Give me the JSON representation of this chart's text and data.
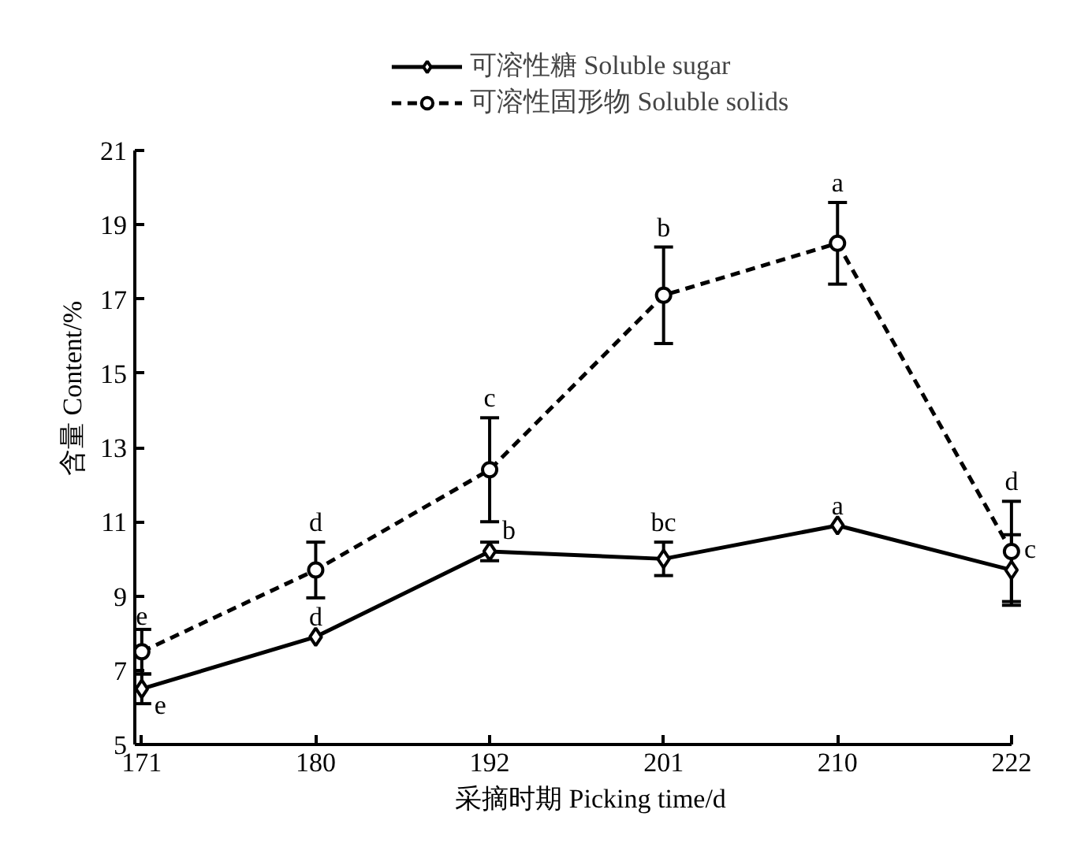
{
  "chart_data": {
    "type": "line",
    "xlabel": "采摘时期 Picking time/d",
    "ylabel": "含量 Content/%",
    "categories": [
      "171",
      "180",
      "192",
      "201",
      "210",
      "222"
    ],
    "ylim": [
      5,
      21
    ],
    "yticks": [
      5,
      7,
      9,
      11,
      13,
      15,
      17,
      19,
      21
    ],
    "grid": false,
    "legend": "top",
    "series": [
      {
        "name": "可溶性糖 Soluble sugar",
        "color": "#000000",
        "marker": "diamond",
        "line_style": "solid",
        "values": [
          6.5,
          7.9,
          10.2,
          10.0,
          10.9,
          9.7
        ],
        "errors": [
          0.4,
          null,
          0.25,
          0.45,
          null,
          0.95
        ]
      },
      {
        "name": "可溶性固形物 Soluble solids",
        "color": "#000000",
        "marker": "circle",
        "line_style": "dashed",
        "values": [
          7.5,
          9.7,
          12.4,
          17.1,
          18.5,
          10.2
        ],
        "errors": [
          0.6,
          0.75,
          1.4,
          1.3,
          1.1,
          1.35
        ]
      }
    ],
    "annotations": [
      "e",
      "d",
      "b",
      "bc",
      "a",
      "c",
      "e",
      "d",
      "c",
      "b",
      "a",
      "d"
    ]
  }
}
